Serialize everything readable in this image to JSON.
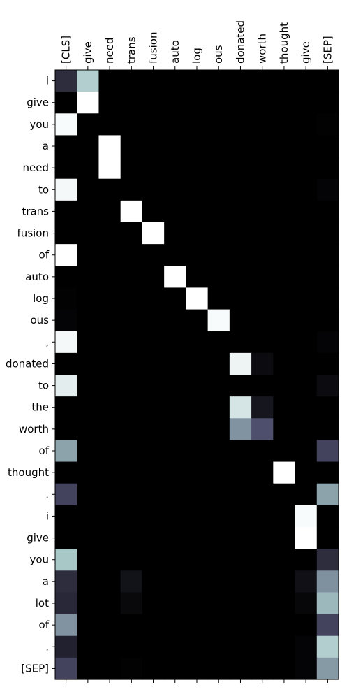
{
  "chart_data": {
    "type": "heatmap",
    "title": "",
    "xlabel": "",
    "ylabel": "",
    "colormap": "bone",
    "value_range": [
      0,
      1
    ],
    "x_labels": [
      "[CLS]",
      "give",
      "need",
      "trans",
      "fusion",
      "auto",
      "log",
      "ous",
      "donated",
      "worth",
      "thought",
      "give",
      "[SEP]"
    ],
    "y_labels": [
      "i",
      "give",
      "you",
      "a",
      "need",
      "to",
      "trans",
      "fusion",
      "of",
      "auto",
      "log",
      "ous",
      ",",
      "donated",
      "to",
      "the",
      "worth",
      "of",
      "thought",
      ".",
      "i",
      "give",
      "you",
      "a",
      "lot",
      "of",
      ".",
      "[SEP]"
    ],
    "values": [
      [
        0.2,
        0.78,
        0,
        0,
        0,
        0,
        0,
        0,
        0,
        0,
        0,
        0,
        0
      ],
      [
        0,
        1.0,
        0,
        0,
        0,
        0,
        0,
        0,
        0,
        0,
        0,
        0,
        0
      ],
      [
        0.98,
        0,
        0,
        0,
        0,
        0,
        0,
        0,
        0,
        0,
        0,
        0,
        0.01
      ],
      [
        0,
        0,
        1.0,
        0,
        0,
        0,
        0,
        0,
        0,
        0,
        0,
        0,
        0
      ],
      [
        0,
        0,
        1.0,
        0,
        0,
        0,
        0,
        0,
        0,
        0,
        0,
        0,
        0
      ],
      [
        0.97,
        0,
        0,
        0,
        0,
        0,
        0,
        0,
        0,
        0,
        0,
        0,
        0.02
      ],
      [
        0,
        0,
        0,
        1.0,
        0,
        0,
        0,
        0,
        0,
        0,
        0,
        0,
        0
      ],
      [
        0,
        0,
        0,
        0,
        1.0,
        0,
        0,
        0,
        0,
        0,
        0,
        0,
        0
      ],
      [
        1.0,
        0,
        0,
        0,
        0,
        0,
        0,
        0,
        0,
        0,
        0,
        0,
        0
      ],
      [
        0,
        0,
        0,
        0,
        0,
        1.0,
        0,
        0,
        0,
        0,
        0,
        0,
        0
      ],
      [
        0.01,
        0,
        0,
        0,
        0,
        0,
        1.0,
        0,
        0,
        0,
        0,
        0,
        0
      ],
      [
        0.02,
        0,
        0,
        0,
        0,
        0,
        0,
        0.98,
        0,
        0,
        0,
        0,
        0
      ],
      [
        0.97,
        0,
        0,
        0,
        0,
        0,
        0,
        0,
        0,
        0,
        0,
        0,
        0.02
      ],
      [
        0,
        0,
        0,
        0,
        0,
        0,
        0,
        0,
        0.95,
        0.05,
        0,
        0,
        0
      ],
      [
        0.92,
        0,
        0,
        0,
        0,
        0,
        0,
        0,
        0,
        0,
        0,
        0,
        0.05
      ],
      [
        0,
        0,
        0,
        0,
        0,
        0,
        0,
        0,
        0.88,
        0.1,
        0,
        0,
        0
      ],
      [
        0,
        0,
        0,
        0,
        0,
        0,
        0,
        0,
        0.58,
        0.35,
        0,
        0,
        0
      ],
      [
        0.63,
        0,
        0,
        0,
        0,
        0,
        0,
        0,
        0,
        0,
        0,
        0,
        0.3
      ],
      [
        0,
        0,
        0,
        0,
        0,
        0,
        0,
        0,
        0,
        0,
        1.0,
        0,
        0
      ],
      [
        0.3,
        0,
        0,
        0,
        0,
        0,
        0,
        0,
        0,
        0,
        0,
        0,
        0.63
      ],
      [
        0,
        0,
        0,
        0,
        0,
        0,
        0,
        0,
        0,
        0,
        0,
        0.98,
        0
      ],
      [
        0,
        0,
        0,
        0,
        0,
        0,
        0,
        0,
        0,
        0,
        0,
        1.0,
        0
      ],
      [
        0.75,
        0,
        0,
        0,
        0,
        0,
        0,
        0,
        0,
        0,
        0,
        0,
        0.2
      ],
      [
        0.2,
        0,
        0,
        0.08,
        0,
        0,
        0,
        0,
        0,
        0,
        0,
        0.07,
        0.57
      ],
      [
        0.18,
        0,
        0,
        0.04,
        0,
        0,
        0,
        0,
        0,
        0,
        0,
        0.03,
        0.7
      ],
      [
        0.58,
        0,
        0,
        0,
        0,
        0,
        0,
        0,
        0,
        0,
        0,
        0,
        0.3
      ],
      [
        0.15,
        0,
        0,
        0,
        0,
        0,
        0,
        0,
        0,
        0,
        0,
        0.02,
        0.78
      ],
      [
        0.3,
        0,
        0,
        0.01,
        0,
        0,
        0,
        0,
        0,
        0,
        0,
        0.02,
        0.6
      ]
    ]
  }
}
